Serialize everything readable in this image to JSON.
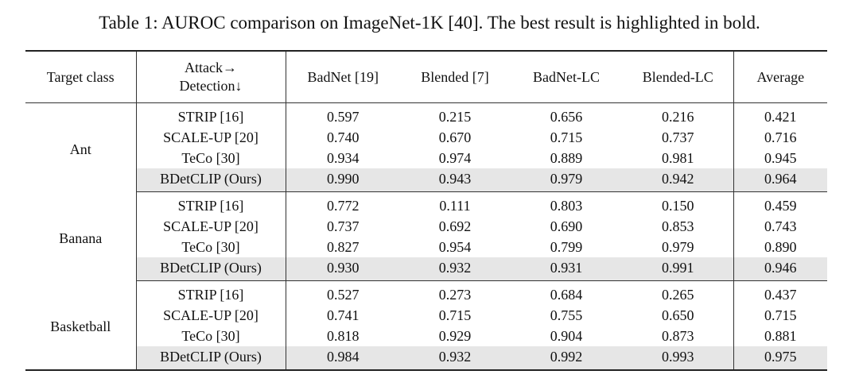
{
  "caption": "Table 1: AUROC comparison on ImageNet-1K [40]. The best result is highlighted in bold.",
  "header": {
    "target_class": "Target class",
    "attack_line1": "Attack→",
    "attack_line2": "Detection↓",
    "columns": [
      "BadNet [19]",
      "Blended [7]",
      "BadNet-LC",
      "Blended-LC",
      "Average"
    ]
  },
  "groups": [
    {
      "target": "Ant",
      "rows": [
        {
          "method": "STRIP [16]",
          "values": [
            "0.597",
            "0.215",
            "0.656",
            "0.216",
            "0.421"
          ],
          "bold": [
            false,
            false,
            false,
            false,
            false
          ],
          "highlight": false
        },
        {
          "method": "SCALE-UP [20]",
          "values": [
            "0.740",
            "0.670",
            "0.715",
            "0.737",
            "0.716"
          ],
          "bold": [
            false,
            false,
            false,
            false,
            false
          ],
          "highlight": false
        },
        {
          "method": "TeCo [30]",
          "values": [
            "0.934",
            "0.974",
            "0.889",
            "0.981",
            "0.945"
          ],
          "bold": [
            false,
            true,
            false,
            true,
            false
          ],
          "highlight": false
        },
        {
          "method": "BDetCLIP (Ours)",
          "values": [
            "0.990",
            "0.943",
            "0.979",
            "0.942",
            "0.964"
          ],
          "bold": [
            true,
            false,
            true,
            false,
            true
          ],
          "highlight": true
        }
      ]
    },
    {
      "target": "Banana",
      "rows": [
        {
          "method": "STRIP [16]",
          "values": [
            "0.772",
            "0.111",
            "0.803",
            "0.150",
            "0.459"
          ],
          "bold": [
            false,
            false,
            false,
            false,
            false
          ],
          "highlight": false
        },
        {
          "method": "SCALE-UP [20]",
          "values": [
            "0.737",
            "0.692",
            "0.690",
            "0.853",
            "0.743"
          ],
          "bold": [
            false,
            false,
            false,
            false,
            false
          ],
          "highlight": false
        },
        {
          "method": "TeCo [30]",
          "values": [
            "0.827",
            "0.954",
            "0.799",
            "0.979",
            "0.890"
          ],
          "bold": [
            false,
            true,
            false,
            false,
            false
          ],
          "highlight": false
        },
        {
          "method": "BDetCLIP (Ours)",
          "values": [
            "0.930",
            "0.932",
            "0.931",
            "0.991",
            "0.946"
          ],
          "bold": [
            true,
            false,
            true,
            true,
            true
          ],
          "highlight": true
        }
      ]
    },
    {
      "target": "Basketball",
      "rows": [
        {
          "method": "STRIP [16]",
          "values": [
            "0.527",
            "0.273",
            "0.684",
            "0.265",
            "0.437"
          ],
          "bold": [
            false,
            false,
            false,
            false,
            false
          ],
          "highlight": false
        },
        {
          "method": "SCALE-UP [20]",
          "values": [
            "0.741",
            "0.715",
            "0.755",
            "0.650",
            "0.715"
          ],
          "bold": [
            false,
            false,
            false,
            false,
            false
          ],
          "highlight": false
        },
        {
          "method": "TeCo [30]",
          "values": [
            "0.818",
            "0.929",
            "0.904",
            "0.873",
            "0.881"
          ],
          "bold": [
            false,
            false,
            false,
            false,
            false
          ],
          "highlight": false
        },
        {
          "method": "BDetCLIP (Ours)",
          "values": [
            "0.984",
            "0.932",
            "0.992",
            "0.993",
            "0.975"
          ],
          "bold": [
            true,
            true,
            true,
            true,
            true
          ],
          "highlight": true
        }
      ]
    }
  ]
}
